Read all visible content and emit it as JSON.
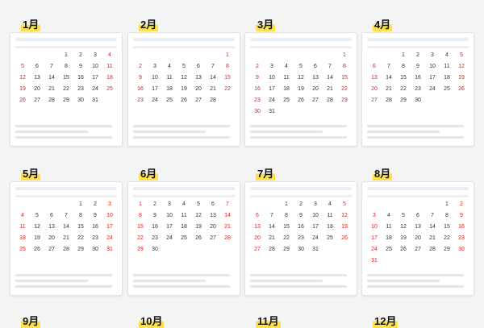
{
  "months": [
    {
      "label": "1月",
      "weeks": [
        [
          null,
          null,
          null,
          1,
          2,
          3,
          4
        ],
        [
          5,
          6,
          7,
          8,
          9,
          10,
          11
        ],
        [
          12,
          13,
          14,
          15,
          16,
          17,
          18
        ],
        [
          19,
          20,
          21,
          22,
          23,
          24,
          25
        ],
        [
          26,
          27,
          28,
          29,
          30,
          31,
          null
        ]
      ]
    },
    {
      "label": "2月",
      "weeks": [
        [
          null,
          null,
          null,
          null,
          null,
          null,
          1
        ],
        [
          2,
          3,
          4,
          5,
          6,
          7,
          8
        ],
        [
          9,
          10,
          11,
          12,
          13,
          14,
          15
        ],
        [
          16,
          17,
          18,
          19,
          20,
          21,
          22
        ],
        [
          23,
          24,
          25,
          26,
          27,
          28,
          null
        ]
      ]
    },
    {
      "label": "3月",
      "weeks": [
        [
          null,
          null,
          null,
          null,
          null,
          null,
          1
        ],
        [
          2,
          3,
          4,
          5,
          6,
          7,
          8
        ],
        [
          9,
          10,
          11,
          12,
          13,
          14,
          15
        ],
        [
          16,
          17,
          18,
          19,
          20,
          21,
          22
        ],
        [
          23,
          24,
          25,
          26,
          27,
          28,
          29
        ],
        [
          30,
          31,
          null,
          null,
          null,
          null,
          null
        ]
      ]
    },
    {
      "label": "4月",
      "weeks": [
        [
          null,
          null,
          1,
          2,
          3,
          4,
          5
        ],
        [
          6,
          7,
          8,
          9,
          10,
          11,
          12
        ],
        [
          13,
          14,
          15,
          16,
          17,
          18,
          19
        ],
        [
          20,
          21,
          22,
          23,
          24,
          25,
          26
        ],
        [
          27,
          28,
          29,
          30,
          null,
          null,
          null
        ]
      ]
    },
    {
      "label": "5月",
      "weeks": [
        [
          null,
          null,
          null,
          null,
          1,
          2,
          3
        ],
        [
          4,
          5,
          6,
          7,
          8,
          9,
          10
        ],
        [
          11,
          12,
          13,
          14,
          15,
          16,
          17
        ],
        [
          18,
          19,
          20,
          21,
          22,
          23,
          24
        ],
        [
          25,
          26,
          27,
          28,
          29,
          30,
          31
        ]
      ]
    },
    {
      "label": "6月",
      "weeks": [
        [
          1,
          2,
          3,
          4,
          5,
          6,
          7
        ],
        [
          8,
          9,
          10,
          11,
          12,
          13,
          14
        ],
        [
          15,
          16,
          17,
          18,
          19,
          20,
          21
        ],
        [
          22,
          23,
          24,
          25,
          26,
          27,
          28
        ],
        [
          29,
          30,
          null,
          null,
          null,
          null,
          null
        ]
      ]
    },
    {
      "label": "7月",
      "weeks": [
        [
          null,
          null,
          1,
          2,
          3,
          4,
          5
        ],
        [
          6,
          7,
          8,
          9,
          10,
          11,
          12
        ],
        [
          13,
          14,
          15,
          16,
          17,
          18,
          19
        ],
        [
          20,
          21,
          22,
          23,
          24,
          25,
          26
        ],
        [
          27,
          28,
          29,
          30,
          31,
          null,
          null
        ]
      ]
    },
    {
      "label": "8月",
      "weeks": [
        [
          null,
          null,
          null,
          null,
          null,
          1,
          2
        ],
        [
          3,
          4,
          5,
          6,
          7,
          8,
          9
        ],
        [
          10,
          11,
          12,
          13,
          14,
          15,
          16
        ],
        [
          17,
          18,
          19,
          20,
          21,
          22,
          23
        ],
        [
          24,
          25,
          26,
          27,
          28,
          29,
          30
        ],
        [
          31,
          null,
          null,
          null,
          null,
          null,
          null
        ]
      ]
    },
    {
      "label": "9月"
    },
    {
      "label": "10月"
    },
    {
      "label": "11月"
    },
    {
      "label": "12月"
    }
  ]
}
